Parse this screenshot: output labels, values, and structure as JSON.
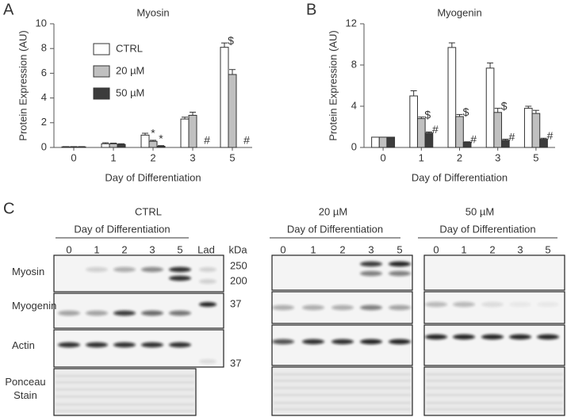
{
  "panel_labels": [
    "A",
    "B",
    "C"
  ],
  "chart_data": [
    {
      "type": "bar",
      "title": "Myosin",
      "x_label": "Day of Differentiation",
      "y_label": "Protein Expression (AU)",
      "categories": [
        "0",
        "1",
        "2",
        "3",
        "5"
      ],
      "ylim": [
        0,
        10
      ],
      "yticks": [
        0,
        2,
        4,
        6,
        8,
        10
      ],
      "legend": "upper left",
      "series": [
        {
          "name": "CTRL",
          "color": "#ffffff",
          "values": [
            0.05,
            0.3,
            1.0,
            2.3,
            8.1
          ],
          "errors": [
            0.02,
            0.08,
            0.15,
            0.15,
            0.35
          ],
          "markers": [
            null,
            null,
            null,
            null,
            "$"
          ]
        },
        {
          "name": "20 µM",
          "color": "#c0c0c0",
          "values": [
            0.05,
            0.3,
            0.5,
            2.6,
            5.9
          ],
          "errors": [
            0.02,
            0.05,
            0.08,
            0.25,
            0.4
          ],
          "markers": [
            null,
            null,
            "*",
            null,
            null
          ]
        },
        {
          "name": "50 µM",
          "color": "#3c3c3c",
          "values": [
            0.05,
            0.25,
            0.1,
            0.0,
            0.0
          ],
          "errors": [
            0.02,
            0.05,
            0.05,
            0.0,
            0.0
          ],
          "markers": [
            null,
            null,
            "*",
            "#",
            "#"
          ]
        }
      ]
    },
    {
      "type": "bar",
      "title": "Myogenin",
      "x_label": "Day of Differentiation",
      "y_label": "Protein Expression (AU)",
      "categories": [
        "0",
        "1",
        "2",
        "3",
        "5"
      ],
      "ylim": [
        0,
        12
      ],
      "yticks": [
        0,
        4,
        8,
        12
      ],
      "series": [
        {
          "color": "#ffffff",
          "values": [
            1.0,
            5.0,
            9.7,
            7.7,
            3.8
          ],
          "errors": [
            0.0,
            0.5,
            0.45,
            0.5,
            0.2
          ],
          "markers": [
            null,
            null,
            null,
            null,
            null
          ]
        },
        {
          "color": "#c0c0c0",
          "values": [
            1.0,
            2.8,
            3.0,
            3.4,
            3.3
          ],
          "errors": [
            0.0,
            0.15,
            0.2,
            0.4,
            0.3
          ],
          "markers": [
            null,
            "$",
            "$",
            "$",
            null
          ]
        },
        {
          "color": "#3c3c3c",
          "values": [
            1.0,
            1.4,
            0.5,
            0.7,
            0.8
          ],
          "errors": [
            0.0,
            0.1,
            0.05,
            0.1,
            0.1
          ],
          "markers": [
            null,
            "#",
            "#",
            "#",
            "#"
          ]
        }
      ]
    }
  ],
  "panel_c": {
    "rows": [
      "Myosin",
      "Myogenin",
      "Actin",
      "Ponceau Stain"
    ],
    "groups": [
      {
        "title": "CTRL",
        "subtitle": "Day of Differentiation",
        "lanes": [
          "0",
          "1",
          "2",
          "3",
          "5"
        ],
        "ladder": "Lad"
      },
      {
        "title": "20 µM",
        "subtitle": "Day of Differentiation",
        "lanes": [
          "0",
          "1",
          "2",
          "3",
          "5"
        ]
      },
      {
        "title": "50 µM",
        "subtitle": "Day of Differentiation",
        "lanes": [
          "0",
          "1",
          "2",
          "3",
          "5"
        ]
      }
    ],
    "kda_header": "kDa",
    "kda_markers": [
      "250",
      "200",
      "37",
      "37"
    ]
  }
}
